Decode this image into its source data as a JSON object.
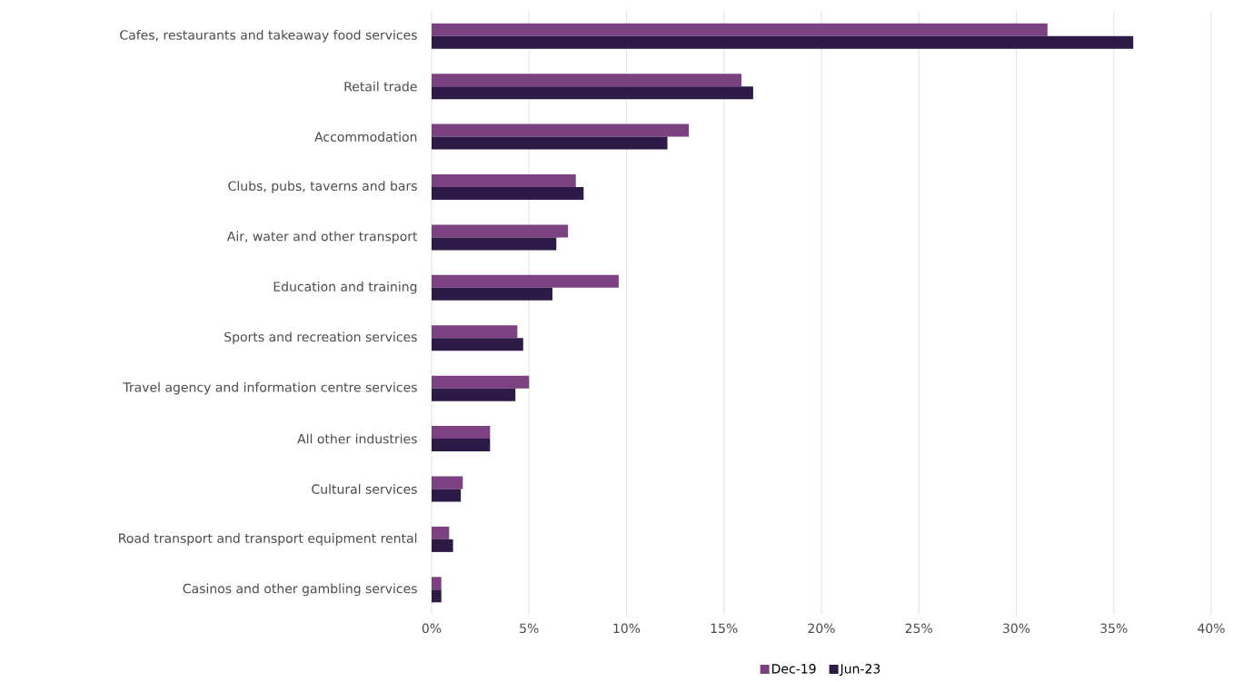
{
  "chart_data": {
    "type": "bar",
    "orientation": "horizontal",
    "categories": [
      "Cafes, restaurants and takeaway food services",
      "Retail trade",
      "Accommodation",
      "Clubs, pubs, taverns and bars",
      "Air, water and other transport",
      "Education and training",
      "Sports and recreation services",
      "Travel agency and information centre services",
      "All other industries",
      "Cultural services",
      "Road transport and transport equipment rental",
      "Casinos and other gambling services"
    ],
    "series": [
      {
        "name": "Dec-19",
        "color": "#7b4180",
        "values": [
          31.6,
          15.9,
          13.2,
          7.4,
          7.0,
          9.6,
          4.4,
          5.0,
          3.0,
          1.6,
          0.9,
          0.5
        ]
      },
      {
        "name": "Jun-23",
        "color": "#2d1a47",
        "values": [
          36.0,
          16.5,
          12.1,
          7.8,
          6.4,
          6.2,
          4.7,
          4.3,
          3.0,
          1.5,
          1.1,
          0.5
        ]
      }
    ],
    "xlim": [
      0,
      40
    ],
    "xticks": [
      {
        "value": 0,
        "label": "0%"
      },
      {
        "value": 5,
        "label": "5%"
      },
      {
        "value": 10,
        "label": "10%"
      },
      {
        "value": 15,
        "label": "15%"
      },
      {
        "value": 20,
        "label": "20%"
      },
      {
        "value": 25,
        "label": "25%"
      },
      {
        "value": 30,
        "label": "30%"
      },
      {
        "value": 35,
        "label": "35%"
      },
      {
        "value": 40,
        "label": "40%"
      }
    ],
    "grid": "x",
    "legend": "bottom"
  }
}
